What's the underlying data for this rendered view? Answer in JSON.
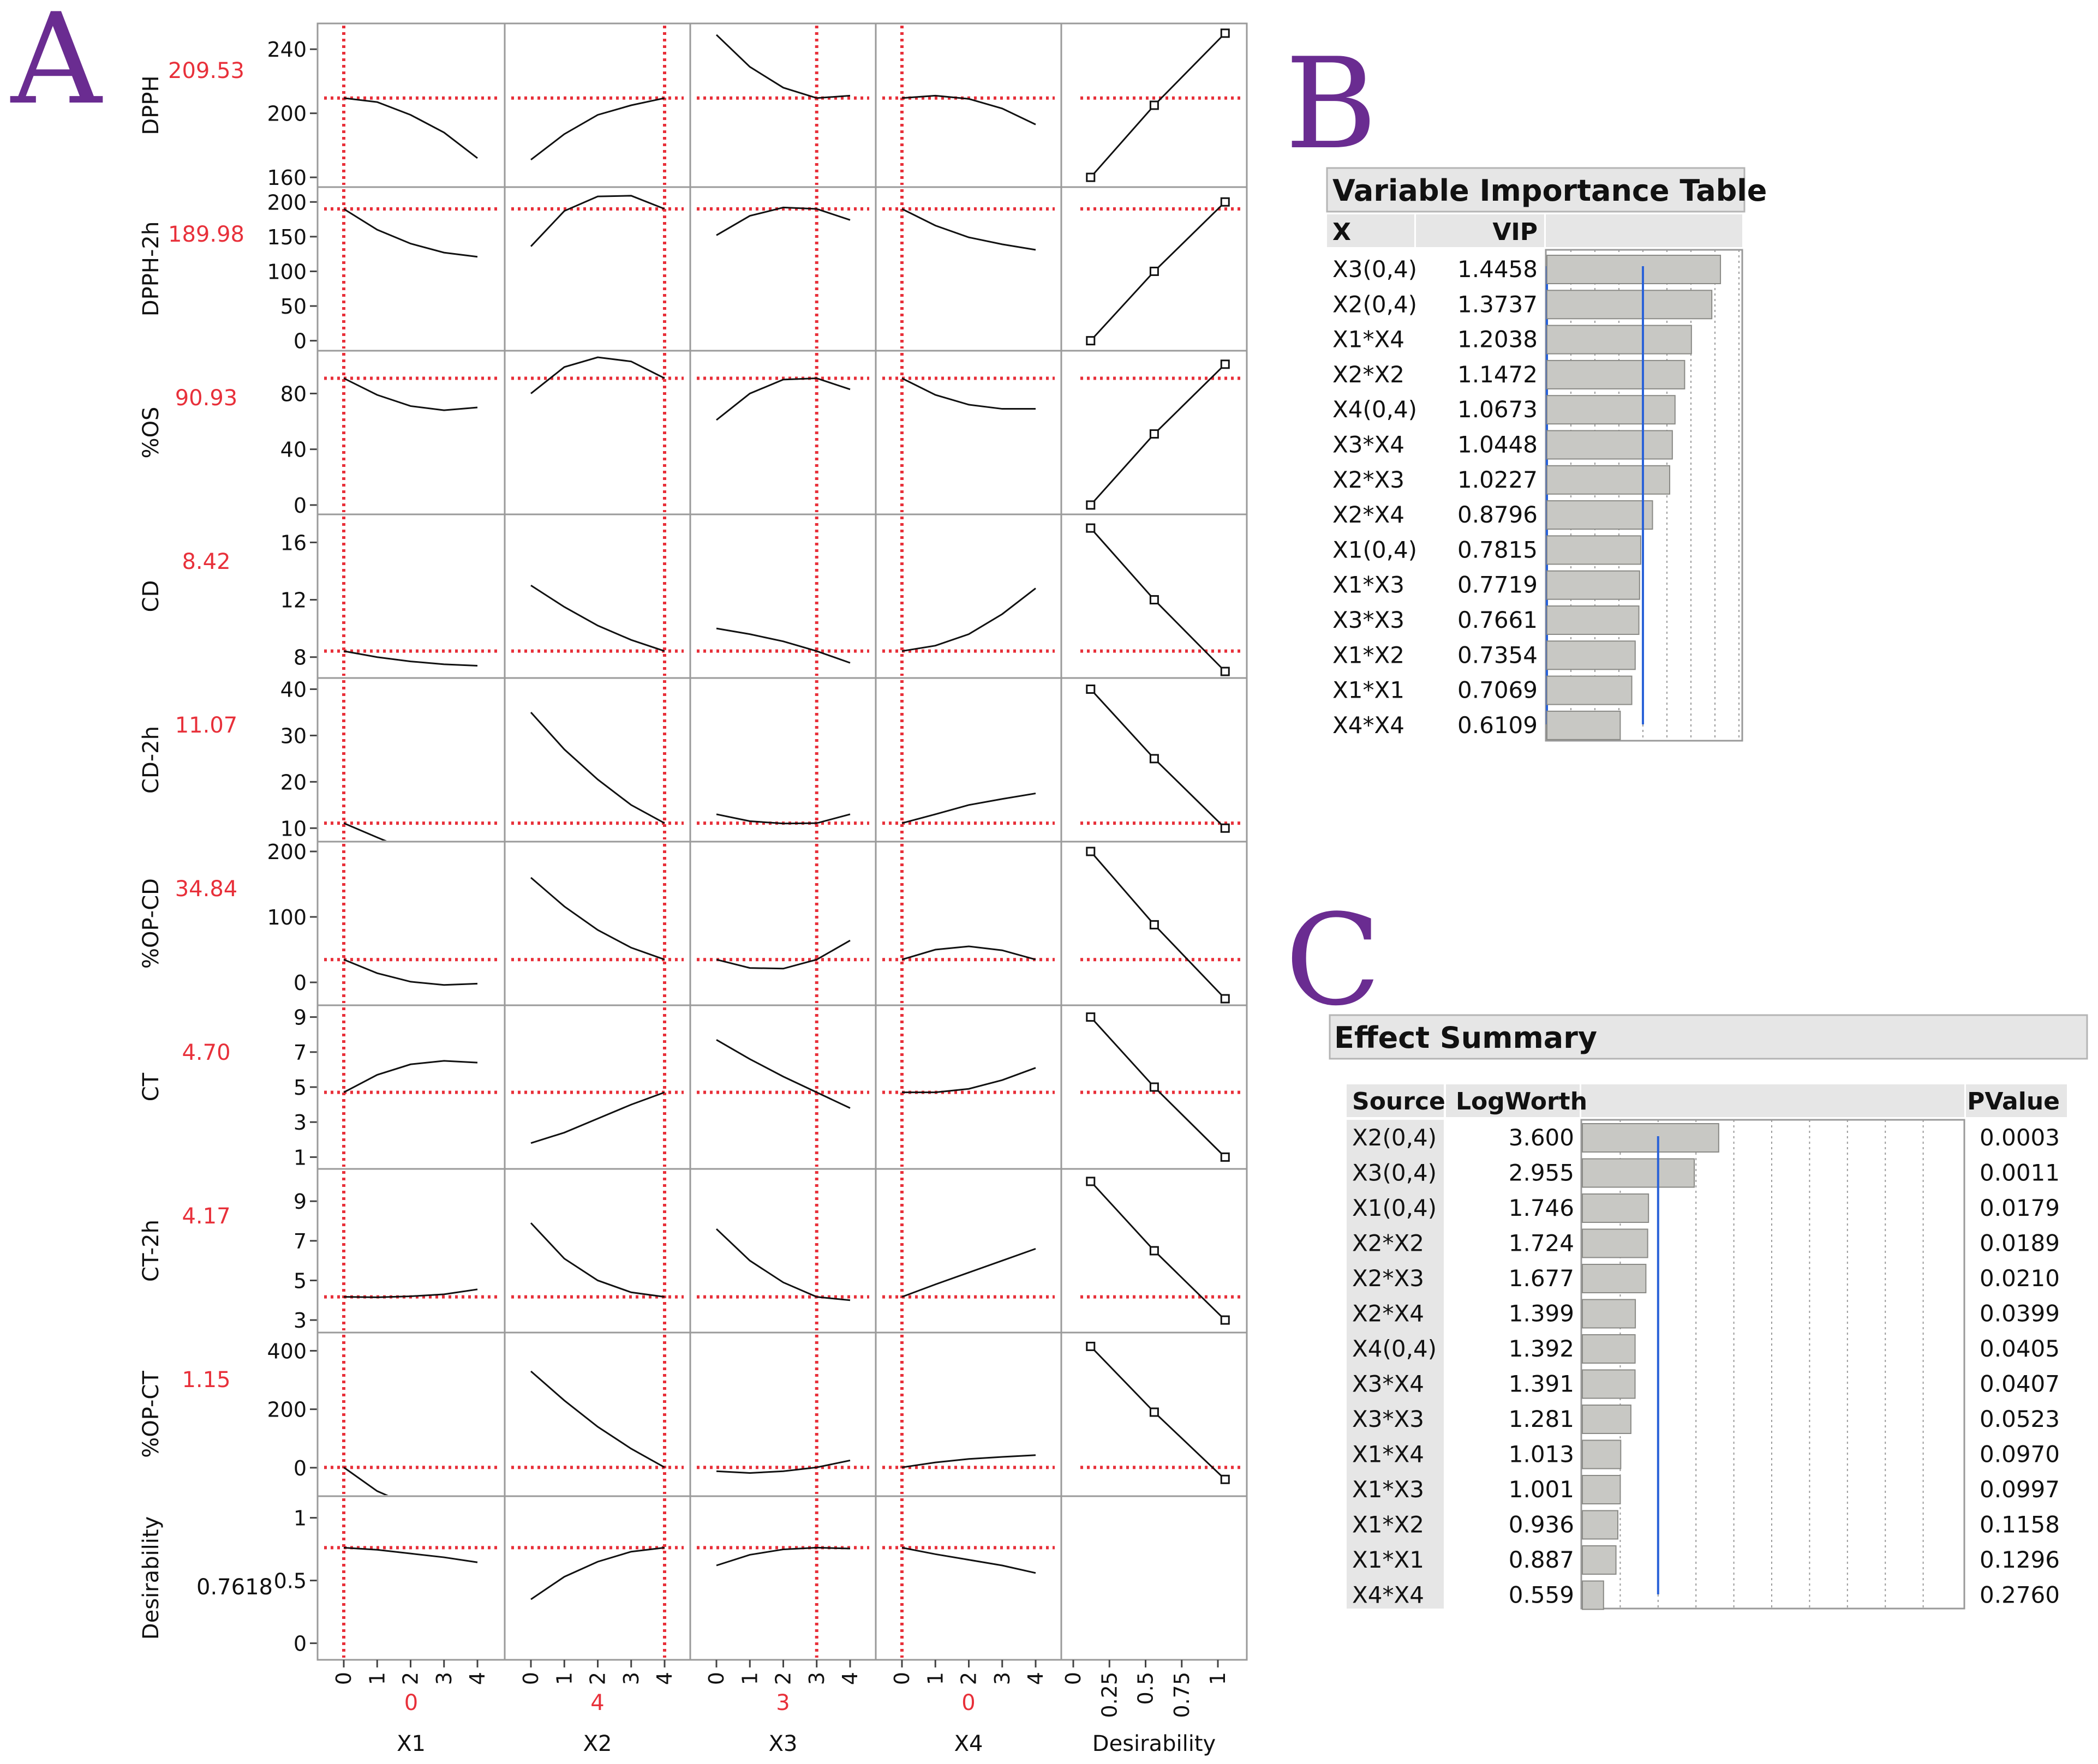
{
  "labels": {
    "panel_a": "A",
    "panel_b": "B",
    "panel_c": "C"
  },
  "colors": {
    "accent_red": "#e8303a",
    "letter_purple": "#6a2c91",
    "bar_fill": "#c8c8c4",
    "vip_line": "#2a62d8",
    "header_fill": "#e6e6e6"
  },
  "chart_data": [
    {
      "type": "line",
      "title": "Prediction Profiler",
      "factors": [
        {
          "name": "X1",
          "current": "0",
          "value": 0,
          "ticks": [
            "0",
            "1",
            "2",
            "3",
            "4"
          ],
          "range": [
            0,
            4
          ]
        },
        {
          "name": "X2",
          "current": "4",
          "value": 4,
          "ticks": [
            "0",
            "1",
            "2",
            "3",
            "4"
          ],
          "range": [
            0,
            4
          ]
        },
        {
          "name": "X3",
          "current": "3",
          "value": 3,
          "ticks": [
            "0",
            "1",
            "2",
            "3",
            "4"
          ],
          "range": [
            0,
            4
          ]
        },
        {
          "name": "X4",
          "current": "0",
          "value": 0,
          "ticks": [
            "0",
            "1",
            "2",
            "3",
            "4"
          ],
          "range": [
            0,
            4
          ]
        }
      ],
      "desirability_axis": {
        "name": "Desirability",
        "ticks": [
          "0",
          "0.25",
          "0.5",
          "0.75",
          "1"
        ],
        "range": [
          0,
          1
        ]
      },
      "responses": [
        {
          "name": "DPPH",
          "current": "209.53",
          "value": 209.53,
          "ylim": [
            158,
            252
          ],
          "yticks": [
            "160",
            "200",
            "240"
          ],
          "curves": [
            [
              209.5,
              207,
              199,
              188,
              172
            ],
            [
              171,
              187,
              199,
              205,
              209.5
            ],
            [
              249,
              229,
              216,
              209.5,
              211
            ],
            [
              209.5,
              211,
              209,
              203,
              193
            ]
          ],
          "desirability_points": [
            [
              0.12,
              160
            ],
            [
              0.56,
              205
            ],
            [
              1.05,
              250
            ]
          ]
        },
        {
          "name": "DPPH-2h",
          "current": "189.98",
          "value": 189.98,
          "ylim": [
            -5,
            212
          ],
          "yticks": [
            "0",
            "50",
            "100",
            "150",
            "200"
          ],
          "curves": [
            [
              189.98,
              160,
              140,
              127,
              121
            ],
            [
              136,
              187,
              208,
              209,
              189.98
            ],
            [
              152,
              180,
              192,
              189.98,
              174
            ],
            [
              189.98,
              166,
              149,
              139,
              131
            ]
          ],
          "desirability_points": [
            [
              0.12,
              0
            ],
            [
              0.56,
              100
            ],
            [
              1.05,
              200
            ]
          ]
        },
        {
          "name": "%OS",
          "current": "90.93",
          "value": 90.93,
          "ylim": [
            -2,
            106
          ],
          "yticks": [
            "0",
            "40",
            "80"
          ],
          "curves": [
            [
              90.93,
              79,
              71,
              68,
              70
            ],
            [
              80,
              99,
              106,
              103,
              90.93
            ],
            [
              61,
              80,
              90,
              90.93,
              83
            ],
            [
              90.93,
              79,
              72,
              69,
              69
            ]
          ],
          "desirability_points": [
            [
              0.12,
              0
            ],
            [
              0.56,
              51
            ],
            [
              1.05,
              101
            ]
          ]
        },
        {
          "name": "CD",
          "current": "8.42",
          "value": 8.42,
          "ylim": [
            7,
            17.5
          ],
          "yticks": [
            "8",
            "12",
            "16"
          ],
          "curves": [
            [
              8.42,
              8.0,
              7.7,
              7.5,
              7.4
            ],
            [
              13.0,
              11.5,
              10.2,
              9.2,
              8.42
            ],
            [
              10.0,
              9.6,
              9.1,
              8.42,
              7.6
            ],
            [
              8.42,
              8.8,
              9.6,
              11.0,
              12.8
            ]
          ],
          "desirability_points": [
            [
              0.12,
              17.0
            ],
            [
              0.56,
              12.0
            ],
            [
              1.05,
              7.0
            ]
          ]
        },
        {
          "name": "CD-2h",
          "current": "11.07",
          "value": 11.07,
          "ylim": [
            8.5,
            41
          ],
          "yticks": [
            "10",
            "20",
            "30",
            "40"
          ],
          "curves": [
            [
              11.07,
              8,
              5,
              3,
              2
            ],
            [
              35,
              27,
              20.5,
              15,
              11.07
            ],
            [
              13,
              11.5,
              11,
              11.07,
              13
            ],
            [
              11.07,
              13,
              15,
              16.3,
              17.5
            ]
          ],
          "desirability_points": [
            [
              0.12,
              40
            ],
            [
              0.56,
              25
            ],
            [
              1.05,
              10
            ]
          ]
        },
        {
          "name": "%OP-CD",
          "current": "34.84",
          "value": 34.84,
          "ylim": [
            -25,
            205
          ],
          "yticks": [
            "0",
            "100",
            "200"
          ],
          "curves": [
            [
              34.84,
              14,
              1,
              -4,
              -2
            ],
            [
              160,
              116,
              80,
              53,
              34.84
            ],
            [
              34.84,
              22,
              21,
              34.84,
              64
            ],
            [
              34.84,
              50,
              55,
              49,
              34.84
            ]
          ],
          "desirability_points": [
            [
              0.12,
              200
            ],
            [
              0.56,
              88
            ],
            [
              1.05,
              -25
            ]
          ]
        },
        {
          "name": "CT",
          "current": "4.70",
          "value": 4.7,
          "ylim": [
            0.7,
            9.3
          ],
          "yticks": [
            "1",
            "3",
            "5",
            "7",
            "9"
          ],
          "curves": [
            [
              4.7,
              5.7,
              6.3,
              6.5,
              6.4
            ],
            [
              1.8,
              2.4,
              3.2,
              4.0,
              4.7
            ],
            [
              7.7,
              6.6,
              5.6,
              4.7,
              3.8
            ],
            [
              4.7,
              4.7,
              4.9,
              5.4,
              6.1
            ]
          ],
          "desirability_points": [
            [
              0.12,
              9.0
            ],
            [
              0.56,
              5.0
            ],
            [
              1.05,
              1.0
            ]
          ]
        },
        {
          "name": "CT-2h",
          "current": "4.17",
          "value": 4.17,
          "ylim": [
            2.7,
            10.3
          ],
          "yticks": [
            "3",
            "5",
            "7",
            "9"
          ],
          "curves": [
            [
              4.17,
              4.15,
              4.2,
              4.3,
              4.55
            ],
            [
              7.9,
              6.1,
              5.0,
              4.4,
              4.17
            ],
            [
              7.6,
              6.0,
              4.9,
              4.17,
              4.0
            ],
            [
              4.17,
              4.8,
              5.4,
              6.0,
              6.6
            ]
          ],
          "desirability_points": [
            [
              0.12,
              10.0
            ],
            [
              0.56,
              6.5
            ],
            [
              1.05,
              3.0
            ]
          ]
        },
        {
          "name": "%OP-CT",
          "current": "1.15",
          "value": 1.15,
          "ylim": [
            -75,
            440
          ],
          "yticks": [
            "0",
            "200",
            "400"
          ],
          "curves": [
            [
              1.15,
              -80,
              -130,
              -170,
              -200
            ],
            [
              330,
              230,
              140,
              65,
              1.15
            ],
            [
              -12,
              -18,
              -12,
              1.15,
              25
            ],
            [
              1.15,
              18,
              30,
              37,
              43
            ]
          ],
          "desirability_points": [
            [
              0.12,
              415
            ],
            [
              0.56,
              190
            ],
            [
              1.05,
              -40
            ]
          ]
        },
        {
          "name": "Desirability",
          "current": "0.7618",
          "value": 0.7618,
          "ylim": [
            -0.08,
            1.12
          ],
          "yticks": [
            "0",
            "0.5",
            "1"
          ],
          "curves": [
            [
              0.7618,
              0.745,
              0.715,
              0.685,
              0.645
            ],
            [
              0.35,
              0.53,
              0.65,
              0.73,
              0.7618
            ],
            [
              0.62,
              0.705,
              0.748,
              0.7618,
              0.755
            ],
            [
              0.7618,
              0.71,
              0.665,
              0.62,
              0.56
            ]
          ],
          "desirability_points": []
        }
      ]
    },
    {
      "type": "bar",
      "title": "Variable Importance Table",
      "columns": [
        "X",
        "VIP"
      ],
      "categories": [
        "X3(0,4)",
        "X2(0,4)",
        "X1*X4",
        "X2*X2",
        "X4(0,4)",
        "X3*X4",
        "X2*X3",
        "X2*X4",
        "X1(0,4)",
        "X1*X3",
        "X3*X3",
        "X1*X2",
        "X1*X1",
        "X4*X4"
      ],
      "value_labels": [
        "1.4458",
        "1.3737",
        "1.2038",
        "1.1472",
        "1.0673",
        "1.0448",
        "1.0227",
        "0.8796",
        "0.7815",
        "0.7719",
        "0.7661",
        "0.7354",
        "0.7069",
        "0.6109"
      ],
      "values": [
        1.4458,
        1.3737,
        1.2038,
        1.1472,
        1.0673,
        1.0448,
        1.0227,
        0.8796,
        0.7815,
        0.7719,
        0.7661,
        0.7354,
        0.7069,
        0.6109
      ],
      "reference": 0.8,
      "xlim": [
        0,
        1.6
      ]
    },
    {
      "type": "bar",
      "title": "Effect Summary",
      "columns": [
        "Source",
        "LogWorth",
        "PValue"
      ],
      "categories": [
        "X2(0,4)",
        "X3(0,4)",
        "X1(0,4)",
        "X2*X2",
        "X2*X3",
        "X2*X4",
        "X4(0,4)",
        "X3*X4",
        "X3*X3",
        "X1*X4",
        "X1*X3",
        "X1*X2",
        "X1*X1",
        "X4*X4"
      ],
      "value_labels": [
        "3.600",
        "2.955",
        "1.746",
        "1.724",
        "1.677",
        "1.399",
        "1.392",
        "1.391",
        "1.281",
        "1.013",
        "1.001",
        "0.936",
        "0.887",
        "0.559"
      ],
      "values": [
        3.6,
        2.955,
        1.746,
        1.724,
        1.677,
        1.399,
        1.392,
        1.391,
        1.281,
        1.013,
        1.001,
        0.936,
        0.887,
        0.559
      ],
      "pvalues": [
        "0.0003",
        "0.0011",
        "0.0179",
        "0.0189",
        "0.0210",
        "0.0399",
        "0.0405",
        "0.0407",
        "0.0523",
        "0.0970",
        "0.0997",
        "0.1158",
        "0.1296",
        "0.2760"
      ],
      "reference": 2.0,
      "xlim": [
        0,
        10
      ]
    }
  ]
}
